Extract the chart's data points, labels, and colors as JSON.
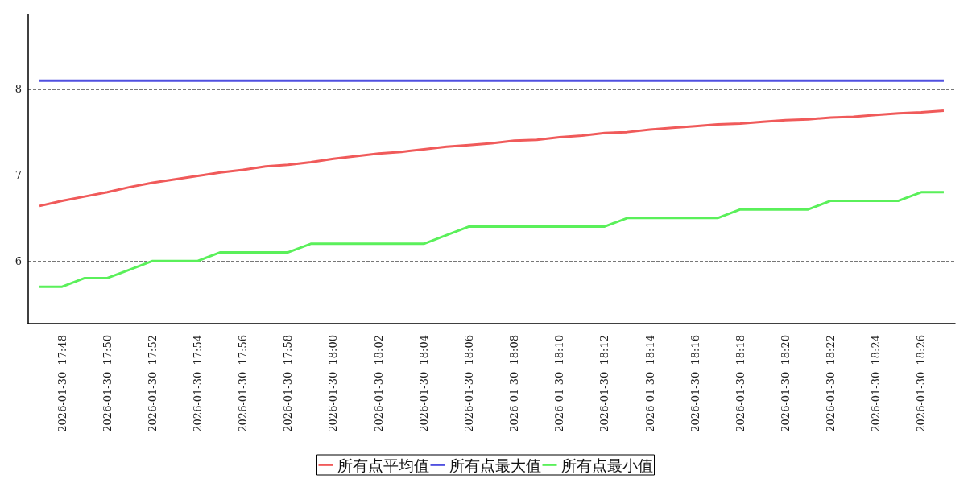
{
  "chart_data": {
    "type": "line",
    "categories": [
      null,
      "2026-01-30  17:48",
      null,
      "2026-01-30  17:50",
      null,
      "2026-01-30  17:52",
      null,
      "2026-01-30  17:54",
      null,
      "2026-01-30  17:56",
      null,
      "2026-01-30  17:58",
      null,
      "2026-01-30  18:00",
      null,
      "2026-01-30  18:02",
      null,
      "2026-01-30  18:04",
      null,
      "2026-01-30  18:06",
      null,
      "2026-01-30  18:08",
      null,
      "2026-01-30  18:10",
      null,
      "2026-01-30  18:12",
      null,
      "2026-01-30  18:14",
      null,
      "2026-01-30  18:16",
      null,
      "2026-01-30  18:18",
      null,
      "2026-01-30  18:20",
      null,
      "2026-01-30  18:22",
      null,
      "2026-01-30  18:24",
      null,
      "2026-01-30  18:26",
      null
    ],
    "series": [
      {
        "name": "所有点平均值",
        "color": "#f05a5a",
        "values": [
          6.64,
          6.7,
          6.75,
          6.8,
          6.86,
          6.91,
          6.95,
          6.99,
          7.03,
          7.06,
          7.1,
          7.12,
          7.15,
          7.19,
          7.22,
          7.25,
          7.27,
          7.3,
          7.33,
          7.35,
          7.37,
          7.4,
          7.41,
          7.44,
          7.46,
          7.49,
          7.5,
          7.53,
          7.55,
          7.57,
          7.59,
          7.6,
          7.62,
          7.64,
          7.65,
          7.67,
          7.68,
          7.7,
          7.72,
          7.73,
          7.75
        ]
      },
      {
        "name": "所有点最大值",
        "color": "#5050e0",
        "values": [
          8.1,
          8.1,
          8.1,
          8.1,
          8.1,
          8.1,
          8.1,
          8.1,
          8.1,
          8.1,
          8.1,
          8.1,
          8.1,
          8.1,
          8.1,
          8.1,
          8.1,
          8.1,
          8.1,
          8.1,
          8.1,
          8.1,
          8.1,
          8.1,
          8.1,
          8.1,
          8.1,
          8.1,
          8.1,
          8.1,
          8.1,
          8.1,
          8.1,
          8.1,
          8.1,
          8.1,
          8.1,
          8.1,
          8.1,
          8.1,
          8.1
        ]
      },
      {
        "name": "所有点最小值",
        "color": "#5af05a",
        "values": [
          5.7,
          5.7,
          5.8,
          5.8,
          5.9,
          6.0,
          6.0,
          6.0,
          6.1,
          6.1,
          6.1,
          6.1,
          6.2,
          6.2,
          6.2,
          6.2,
          6.2,
          6.2,
          6.3,
          6.4,
          6.4,
          6.4,
          6.4,
          6.4,
          6.4,
          6.4,
          6.5,
          6.5,
          6.5,
          6.5,
          6.5,
          6.6,
          6.6,
          6.6,
          6.6,
          6.7,
          6.7,
          6.7,
          6.7,
          6.8,
          6.8
        ]
      }
    ],
    "ylim": [
      5.27,
      8.87
    ],
    "yticks": [
      6,
      7,
      8
    ],
    "grid": "y",
    "legend": "bottom",
    "marker": "none",
    "line_style": "solid"
  }
}
